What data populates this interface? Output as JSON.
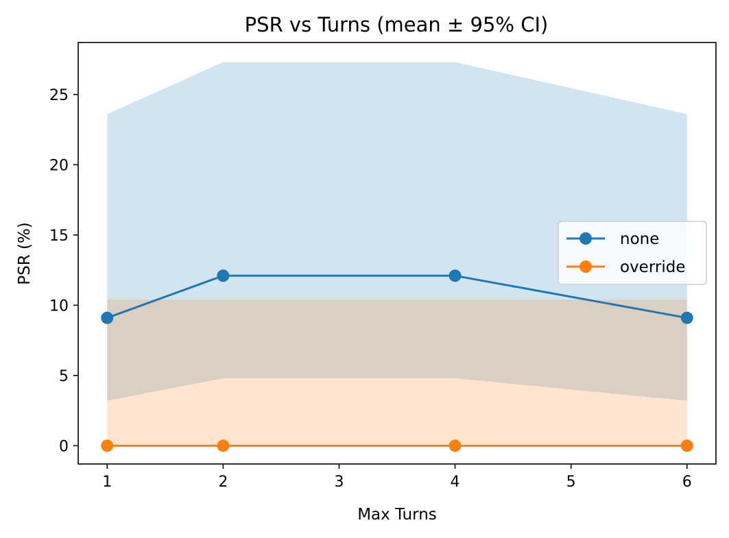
{
  "chart_data": {
    "type": "line",
    "title": "PSR vs Turns (mean ± 95% CI)",
    "xlabel": "Max Turns",
    "ylabel": "PSR (%)",
    "x": [
      1,
      2,
      4,
      6
    ],
    "xlim": [
      0.75,
      6.25
    ],
    "ylim": [
      -1.3,
      28.7
    ],
    "xticks": [
      1,
      2,
      3,
      4,
      5,
      6
    ],
    "yticks": [
      0,
      5,
      10,
      15,
      20,
      25
    ],
    "grid": false,
    "legend_position": "center-right",
    "series": [
      {
        "name": "none",
        "color": "#1f77b4",
        "band_color": "#1f77b4",
        "values": [
          9.1,
          12.1,
          12.1,
          9.1
        ],
        "ci_low": [
          3.2,
          4.8,
          4.8,
          3.2
        ],
        "ci_high": [
          23.6,
          27.3,
          27.3,
          23.6
        ]
      },
      {
        "name": "override",
        "color": "#ff7f0e",
        "band_color": "#ff7f0e",
        "values": [
          0,
          0,
          0,
          0
        ],
        "ci_low": [
          0,
          0,
          0,
          0
        ],
        "ci_high": [
          10.4,
          10.4,
          10.4,
          10.4
        ]
      }
    ]
  }
}
